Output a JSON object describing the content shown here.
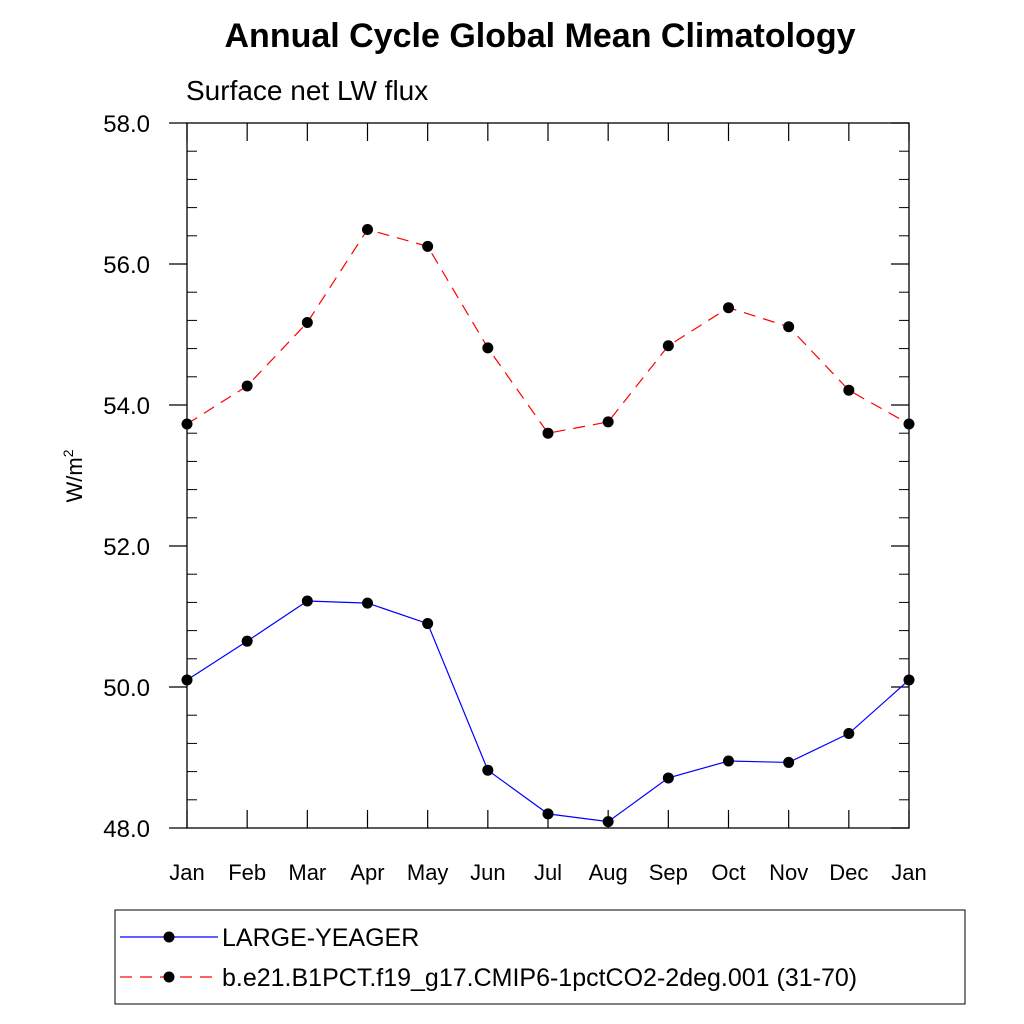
{
  "chart_data": {
    "type": "line",
    "title": "Annual Cycle Global Mean Climatology",
    "subtitle": "Surface net LW flux",
    "xlabel": "",
    "ylabel": "W/m",
    "ylabel_superscript": "2",
    "categories": [
      "Jan",
      "Feb",
      "Mar",
      "Apr",
      "May",
      "Jun",
      "Jul",
      "Aug",
      "Sep",
      "Oct",
      "Nov",
      "Dec",
      "Jan"
    ],
    "ylim": [
      48.0,
      58.0
    ],
    "yticks": [
      "48.0",
      "50.0",
      "52.0",
      "54.0",
      "56.0",
      "58.0"
    ],
    "series": [
      {
        "name": "LARGE-YEAGER",
        "color": "#0000ff",
        "dash": "solid",
        "values": [
          50.1,
          50.65,
          51.22,
          51.19,
          50.9,
          48.82,
          48.2,
          48.09,
          48.71,
          48.95,
          48.93,
          49.34,
          50.1
        ]
      },
      {
        "name": "b.e21.B1PCT.f19_g17.CMIP6-1pctCO2-2deg.001 (31-70)",
        "color": "#ff0000",
        "dash": "dashed",
        "values": [
          53.73,
          54.27,
          55.17,
          56.49,
          56.25,
          54.81,
          53.6,
          53.76,
          54.84,
          55.38,
          55.11,
          54.21,
          53.73
        ]
      }
    ],
    "legend_position": "bottom",
    "marker": "filled-circle",
    "marker_color": "#000000"
  }
}
